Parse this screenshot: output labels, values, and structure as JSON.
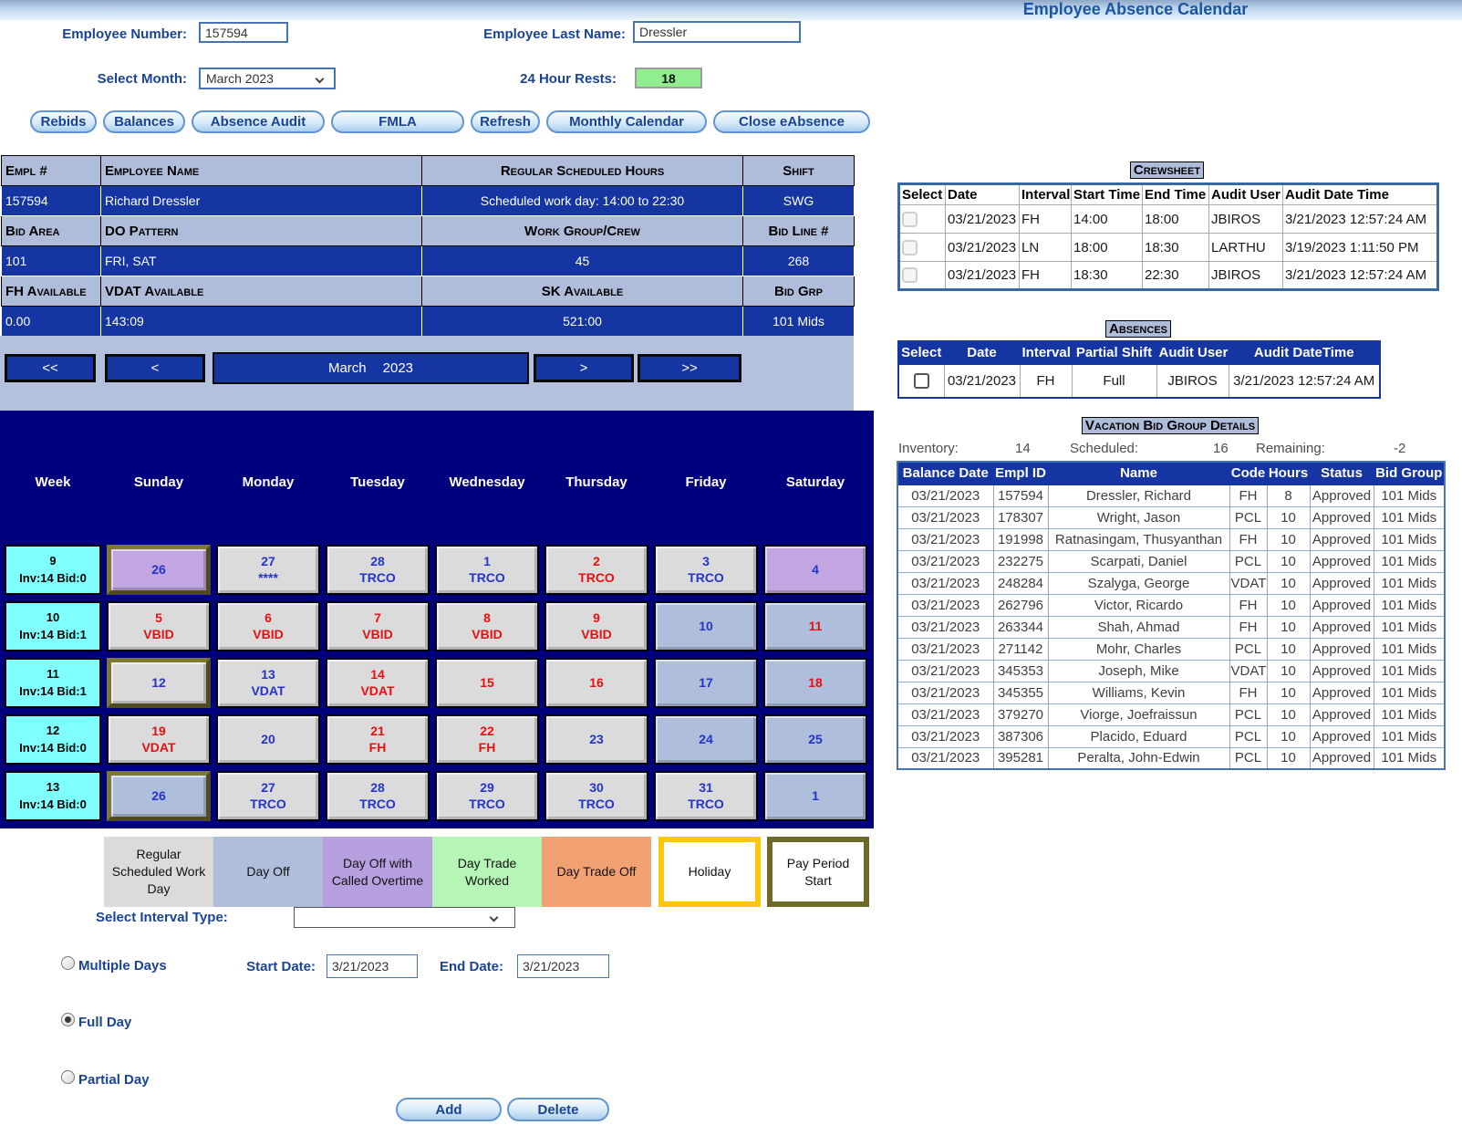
{
  "title": "Employee Absence Calendar",
  "form": {
    "employee_number_label": "Employee Number:",
    "employee_number": "157594",
    "last_name_label": "Employee Last Name:",
    "last_name": "Dressler",
    "select_month_label": "Select Month:",
    "selected_month": "March 2023",
    "rests_label": "24 Hour Rests:",
    "rests_value": "18"
  },
  "toolbar": {
    "buttons": [
      "Rebids",
      "Balances",
      "Absence Audit",
      "FMLA",
      "Refresh",
      "Monthly Calendar",
      "Close eAbsence"
    ]
  },
  "employee_info": {
    "rows": [
      {
        "headers": [
          "Empl #",
          "Employee Name",
          "Regular Scheduled Hours",
          "Shift"
        ],
        "values": [
          "157594",
          "Richard Dressler",
          "Scheduled work day: 14:00 to 22:30",
          "SWG"
        ]
      },
      {
        "headers": [
          "Bid Area",
          "DO Pattern",
          "Work Group/Crew",
          "Bid Line #"
        ],
        "values": [
          "101",
          "FRI, SAT",
          "45",
          "268"
        ]
      },
      {
        "headers": [
          "FH Available",
          "VDAT Available",
          "SK Available",
          "Bid Grp"
        ],
        "values": [
          "0.00",
          "143:09",
          "521:00",
          "101 Mids"
        ]
      }
    ]
  },
  "month_nav": {
    "fast_prev": "<<",
    "prev": "<",
    "month": "March",
    "year": "2023",
    "next": ">",
    "fast_next": ">>"
  },
  "calendar": {
    "day_headers": [
      "Week",
      "Sunday",
      "Monday",
      "Tuesday",
      "Wednesday",
      "Thursday",
      "Friday",
      "Saturday"
    ],
    "weeks": [
      {
        "week": "9",
        "inv": "Inv:14 Bid:0",
        "days": [
          {
            "num": "26",
            "code": "",
            "bg": "oc",
            "color": "blue",
            "pp": true
          },
          {
            "num": "27",
            "code": "****",
            "bg": "work",
            "color": "blue"
          },
          {
            "num": "28",
            "code": "TRCO",
            "bg": "work",
            "color": "blue"
          },
          {
            "num": "1",
            "code": "TRCO",
            "bg": "work",
            "color": "blue"
          },
          {
            "num": "2",
            "code": "TRCO",
            "bg": "work",
            "color": "red"
          },
          {
            "num": "3",
            "code": "TRCO",
            "bg": "work",
            "color": "blue"
          },
          {
            "num": "4",
            "code": "",
            "bg": "oc",
            "color": "blue"
          }
        ]
      },
      {
        "week": "10",
        "inv": "Inv:14 Bid:1",
        "days": [
          {
            "num": "5",
            "code": "VBID",
            "bg": "work",
            "color": "red"
          },
          {
            "num": "6",
            "code": "VBID",
            "bg": "work",
            "color": "red"
          },
          {
            "num": "7",
            "code": "VBID",
            "bg": "work",
            "color": "red"
          },
          {
            "num": "8",
            "code": "VBID",
            "bg": "work",
            "color": "red"
          },
          {
            "num": "9",
            "code": "VBID",
            "bg": "work",
            "color": "red"
          },
          {
            "num": "10",
            "code": "",
            "bg": "off",
            "color": "blue"
          },
          {
            "num": "11",
            "code": "",
            "bg": "off",
            "color": "red"
          }
        ]
      },
      {
        "week": "11",
        "inv": "Inv:14 Bid:1",
        "days": [
          {
            "num": "12",
            "code": "",
            "bg": "work",
            "color": "blue",
            "pp": true
          },
          {
            "num": "13",
            "code": "VDAT",
            "bg": "work",
            "color": "blue"
          },
          {
            "num": "14",
            "code": "VDAT",
            "bg": "work",
            "color": "red"
          },
          {
            "num": "15",
            "code": "",
            "bg": "work",
            "color": "red"
          },
          {
            "num": "16",
            "code": "",
            "bg": "work",
            "color": "red"
          },
          {
            "num": "17",
            "code": "",
            "bg": "off",
            "color": "blue"
          },
          {
            "num": "18",
            "code": "",
            "bg": "off",
            "color": "red"
          }
        ]
      },
      {
        "week": "12",
        "inv": "Inv:14 Bid:0",
        "days": [
          {
            "num": "19",
            "code": "VDAT",
            "bg": "work",
            "color": "red"
          },
          {
            "num": "20",
            "code": "",
            "bg": "work",
            "color": "blue"
          },
          {
            "num": "21",
            "code": "FH",
            "bg": "work",
            "color": "red"
          },
          {
            "num": "22",
            "code": "FH",
            "bg": "work",
            "color": "red"
          },
          {
            "num": "23",
            "code": "",
            "bg": "work",
            "color": "blue"
          },
          {
            "num": "24",
            "code": "",
            "bg": "off",
            "color": "blue"
          },
          {
            "num": "25",
            "code": "",
            "bg": "off",
            "color": "blue"
          }
        ]
      },
      {
        "week": "13",
        "inv": "Inv:14 Bid:0",
        "days": [
          {
            "num": "26",
            "code": "",
            "bg": "off",
            "color": "blue",
            "pp": true
          },
          {
            "num": "27",
            "code": "TRCO",
            "bg": "work",
            "color": "blue"
          },
          {
            "num": "28",
            "code": "TRCO",
            "bg": "work",
            "color": "blue"
          },
          {
            "num": "29",
            "code": "TRCO",
            "bg": "work",
            "color": "blue"
          },
          {
            "num": "30",
            "code": "TRCO",
            "bg": "work",
            "color": "blue"
          },
          {
            "num": "31",
            "code": "TRCO",
            "bg": "work",
            "color": "blue"
          },
          {
            "num": "1",
            "code": "",
            "bg": "off",
            "color": "blue"
          }
        ]
      }
    ]
  },
  "legend": [
    {
      "label": "Regular Scheduled Work Day",
      "type": "work"
    },
    {
      "label": "Day Off",
      "type": "off"
    },
    {
      "label": "Day Off with Called Overtime",
      "type": "oc"
    },
    {
      "label": "Day Trade Worked",
      "type": "tw"
    },
    {
      "label": "Day Trade Off",
      "type": "to"
    },
    {
      "label": "Holiday",
      "type": "hol"
    },
    {
      "label": "Pay Period Start",
      "type": "pp"
    }
  ],
  "interval": {
    "select_label": "Select Interval Type:",
    "select_value": "",
    "multiple_days_label": "Multiple Days",
    "start_date_label": "Start Date:",
    "start_date": "3/21/2023",
    "end_date_label": "End Date:",
    "end_date": "3/21/2023",
    "full_day_label": "Full Day",
    "partial_day_label": "Partial Day",
    "selected_option": "Full Day",
    "add_label": "Add",
    "delete_label": "Delete"
  },
  "crewsheet": {
    "title": "Crewsheet",
    "headers": [
      "Select",
      "Date",
      "Interval",
      "Start Time",
      "End Time",
      "Audit User",
      "Audit Date Time"
    ],
    "rows": [
      {
        "date": "03/21/2023",
        "interval": "FH",
        "start": "14:00",
        "end": "18:00",
        "audit_user": "JBIROS",
        "audit_date": "3/21/2023 12:57:24 AM"
      },
      {
        "date": "03/21/2023",
        "interval": "LN",
        "start": "18:00",
        "end": "18:30",
        "audit_user": "LARTHU",
        "audit_date": "3/19/2023 1:11:50 PM"
      },
      {
        "date": "03/21/2023",
        "interval": "FH",
        "start": "18:30",
        "end": "22:30",
        "audit_user": "JBIROS",
        "audit_date": "3/21/2023 12:57:24 AM"
      }
    ]
  },
  "absences": {
    "title": "Absences",
    "headers": [
      "Select",
      "Date",
      "Interval",
      "Partial Shift",
      "Audit User",
      "Audit DateTime"
    ],
    "rows": [
      {
        "date": "03/21/2023",
        "interval": "FH",
        "partial_shift": "Full",
        "audit_user": "JBIROS",
        "audit_date": "3/21/2023 12:57:24 AM"
      }
    ]
  },
  "vacation": {
    "title": "Vacation Bid Group Details",
    "inventory_label": "Inventory:",
    "inventory": "14",
    "scheduled_label": "Scheduled:",
    "scheduled": "16",
    "remaining_label": "Remaining:",
    "remaining": "-2",
    "headers": [
      "Balance Date",
      "Empl ID",
      "Name",
      "Code",
      "Hours",
      "Status",
      "Bid Group"
    ],
    "rows": [
      {
        "date": "03/21/2023",
        "empl_id": "157594",
        "name": "Dressler, Richard",
        "code": "FH",
        "hours": "8",
        "status": "Approved",
        "bid_group": "101 Mids"
      },
      {
        "date": "03/21/2023",
        "empl_id": "178307",
        "name": "Wright, Jason",
        "code": "PCL",
        "hours": "10",
        "status": "Approved",
        "bid_group": "101 Mids"
      },
      {
        "date": "03/21/2023",
        "empl_id": "191998",
        "name": "Ratnasingam, Thusyanthan",
        "code": "FH",
        "hours": "10",
        "status": "Approved",
        "bid_group": "101 Mids"
      },
      {
        "date": "03/21/2023",
        "empl_id": "232275",
        "name": "Scarpati, Daniel",
        "code": "PCL",
        "hours": "10",
        "status": "Approved",
        "bid_group": "101 Mids"
      },
      {
        "date": "03/21/2023",
        "empl_id": "248284",
        "name": "Szalyga, George",
        "code": "VDAT",
        "hours": "10",
        "status": "Approved",
        "bid_group": "101 Mids"
      },
      {
        "date": "03/21/2023",
        "empl_id": "262796",
        "name": "Victor, Ricardo",
        "code": "FH",
        "hours": "10",
        "status": "Approved",
        "bid_group": "101 Mids"
      },
      {
        "date": "03/21/2023",
        "empl_id": "263344",
        "name": "Shah, Ahmad",
        "code": "FH",
        "hours": "10",
        "status": "Approved",
        "bid_group": "101 Mids"
      },
      {
        "date": "03/21/2023",
        "empl_id": "271142",
        "name": "Mohr, Charles",
        "code": "PCL",
        "hours": "10",
        "status": "Approved",
        "bid_group": "101 Mids"
      },
      {
        "date": "03/21/2023",
        "empl_id": "345353",
        "name": "Joseph, Mike",
        "code": "VDAT",
        "hours": "10",
        "status": "Approved",
        "bid_group": "101 Mids"
      },
      {
        "date": "03/21/2023",
        "empl_id": "345355",
        "name": "Williams, Kevin",
        "code": "FH",
        "hours": "10",
        "status": "Approved",
        "bid_group": "101 Mids"
      },
      {
        "date": "03/21/2023",
        "empl_id": "379270",
        "name": "Viorge, Joefraissun",
        "code": "PCL",
        "hours": "10",
        "status": "Approved",
        "bid_group": "101 Mids"
      },
      {
        "date": "03/21/2023",
        "empl_id": "387306",
        "name": "Placido, Eduard",
        "code": "PCL",
        "hours": "10",
        "status": "Approved",
        "bid_group": "101 Mids"
      },
      {
        "date": "03/21/2023",
        "empl_id": "395281",
        "name": "Peralta, John-Edwin",
        "code": "PCL",
        "hours": "10",
        "status": "Approved",
        "bid_group": "101 Mids"
      }
    ]
  }
}
